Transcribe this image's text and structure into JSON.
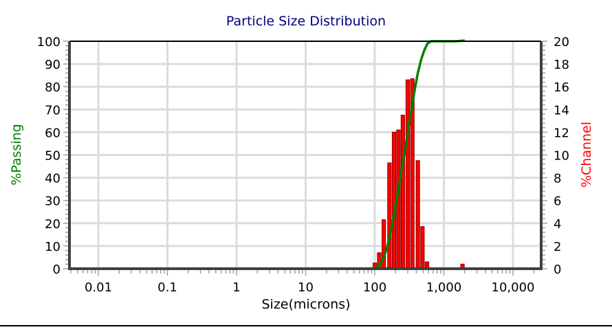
{
  "chart_data": {
    "type": "bar+line",
    "title": "Particle Size Distribution",
    "xlabel": "Size(microns)",
    "ylabel": "%Passing",
    "ylabel_right": "%Channel",
    "xscale": "log",
    "xlim": [
      0.0038,
      25000
    ],
    "ylim": [
      0,
      100
    ],
    "ylim_right": [
      0,
      20
    ],
    "x_ticks": [
      0.01,
      0.1,
      1,
      10,
      100,
      1000,
      10000
    ],
    "x_tick_labels": [
      "0.01",
      "0.1",
      "1",
      "10",
      "100",
      "1,000",
      "10,000"
    ],
    "y_ticks": [
      0,
      10,
      20,
      30,
      40,
      50,
      60,
      70,
      80,
      90,
      100
    ],
    "y_ticks_right": [
      0,
      2,
      4,
      6,
      8,
      10,
      12,
      14,
      16,
      18,
      20
    ],
    "grid": true,
    "series": [
      {
        "name": "%Passing",
        "type": "line",
        "axis": "left",
        "color": "#008000",
        "x": [
          0.012,
          1,
          10,
          80,
          100,
          110,
          120,
          135,
          150,
          170,
          190,
          215,
          240,
          270,
          300,
          340,
          380,
          420,
          470,
          520,
          580,
          650,
          800,
          1000,
          1500,
          2000
        ],
        "values": [
          0,
          0,
          0,
          0,
          0.2,
          0.8,
          2,
          5,
          9,
          16,
          24,
          33,
          42,
          51,
          60,
          70,
          79,
          86,
          92,
          96,
          99,
          100,
          100,
          100,
          100,
          100.3
        ]
      },
      {
        "name": "%Channel",
        "type": "bar",
        "axis": "right",
        "color": "#ff0000",
        "edge_color": "#a00000",
        "x": [
          100,
          116,
          135,
          163,
          190,
          220,
          255,
          300,
          350,
          420,
          490,
          570,
          1860
        ],
        "values": [
          0.5,
          1.4,
          4.3,
          9.3,
          12.0,
          12.2,
          13.5,
          16.6,
          16.7,
          9.5,
          3.7,
          0.6,
          0.4
        ]
      }
    ],
    "colors": {
      "title": "#000080",
      "left_axis_label": "#008000",
      "right_axis_label": "#ff0000",
      "grid": "#dcdcdc",
      "axis": "#404040"
    }
  }
}
